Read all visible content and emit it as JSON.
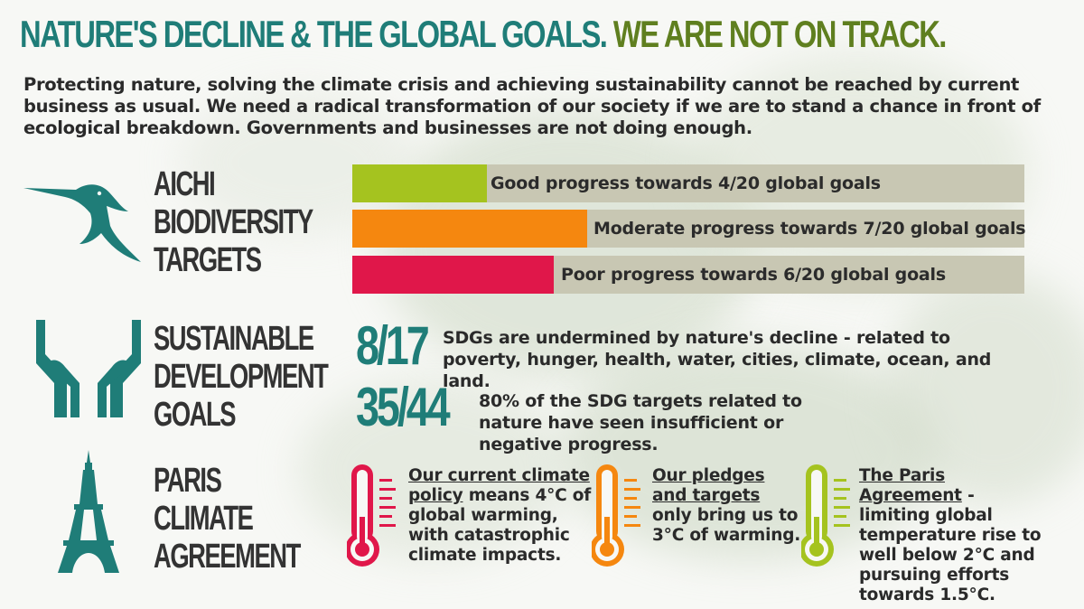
{
  "title": {
    "part1": "NATURE'S DECLINE & THE GLOBAL GOALS.",
    "part2": "WE ARE NOT ON TRACK."
  },
  "intro": "Protecting nature, solving the climate crisis and achieving sustainability cannot be reached by current business as usual. We need a radical transformation of our society if we are to stand a chance in front of ecological breakdown. Governments and businesses are not doing enough.",
  "colors": {
    "teal": "#1f7d78",
    "olive": "#5f7f1f",
    "good": "#a5c31f",
    "moderate": "#f5870f",
    "poor": "#e0174a",
    "bar_track": "#c8c7b3"
  },
  "aichi": {
    "label_lines": [
      "AICHI",
      "BIODIVERSITY",
      "TARGETS"
    ],
    "icon": "hummingbird-icon",
    "bars": [
      {
        "label": "Good progress towards 4/20 global goals",
        "fraction": 0.2,
        "color": "#a5c31f"
      },
      {
        "label": "Moderate progress towards 7/20 global goals",
        "fraction": 0.35,
        "color": "#f5870f"
      },
      {
        "label": "Poor progress towards 6/20 global goals",
        "fraction": 0.3,
        "color": "#e0174a"
      }
    ]
  },
  "sdg": {
    "label_lines": [
      "SUSTAINABLE",
      "DEVELOPMENT",
      "GOALS"
    ],
    "icon": "hands-icon",
    "stats": [
      {
        "number": "8/17",
        "text": "SDGs are undermined by nature's decline - related to poverty, hunger, health, water, cities, climate, ocean, and land."
      },
      {
        "number": "35/44",
        "text": "80% of the SDG targets related to nature have seen insufficient or negative progress."
      }
    ]
  },
  "paris": {
    "label_lines": [
      "PARIS",
      "CLIMATE",
      "AGREEMENT"
    ],
    "icon": "eiffel-tower-icon",
    "items": [
      {
        "underlined": "Our current climate policy",
        "rest": " means 4°C of global warming, with catastrophic climate impacts.",
        "color": "#e0174a",
        "icon": "thermometer-icon"
      },
      {
        "underlined": "Our pledges and targets",
        "rest": " only bring us to 3°C of warming.",
        "color": "#f5870f",
        "icon": "thermometer-icon"
      },
      {
        "underlined": "The Paris Agreement",
        "rest": " -  limiting global temperature rise to well below 2°C and pursuing efforts towards 1.5°C.",
        "color": "#a5c31f",
        "icon": "thermometer-icon"
      }
    ]
  }
}
